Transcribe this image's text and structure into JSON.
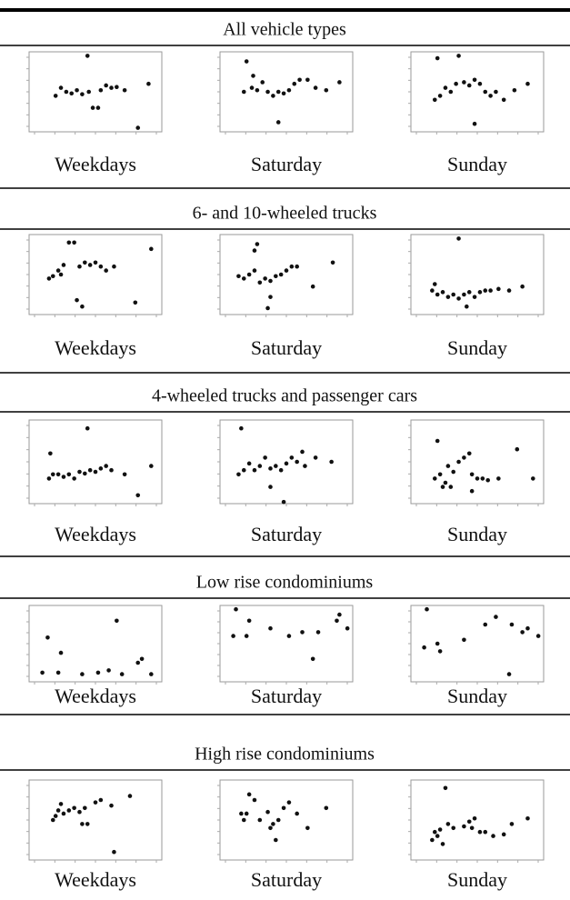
{
  "sections": [
    {
      "title": "All vehicle types",
      "charts": [
        {
          "type": "scatter",
          "label": "Weekdays",
          "xlim": [
            0,
            100
          ],
          "ylim": [
            0,
            100
          ],
          "x": [
            20,
            24,
            28,
            32,
            36,
            40,
            45,
            48,
            52,
            54,
            58,
            62,
            66,
            72,
            44,
            90,
            82
          ],
          "values": [
            45,
            55,
            50,
            48,
            52,
            47,
            50,
            30,
            30,
            52,
            58,
            55,
            56,
            52,
            95,
            60,
            5
          ]
        },
        {
          "type": "scatter",
          "label": "Saturday",
          "xlim": [
            0,
            100
          ],
          "ylim": [
            0,
            100
          ],
          "x": [
            18,
            20,
            24,
            28,
            32,
            36,
            40,
            44,
            48,
            52,
            56,
            60,
            66,
            72,
            80,
            90,
            44,
            25
          ],
          "values": [
            50,
            88,
            55,
            52,
            62,
            50,
            45,
            50,
            48,
            52,
            60,
            65,
            65,
            55,
            52,
            62,
            12,
            70
          ]
        },
        {
          "type": "scatter",
          "label": "Sunday",
          "xlim": [
            0,
            100
          ],
          "ylim": [
            0,
            100
          ],
          "x": [
            18,
            22,
            26,
            30,
            34,
            40,
            44,
            48,
            52,
            56,
            60,
            64,
            70,
            78,
            88,
            20,
            36,
            48
          ],
          "values": [
            40,
            45,
            55,
            50,
            60,
            62,
            58,
            65,
            60,
            50,
            45,
            50,
            40,
            52,
            60,
            92,
            95,
            10
          ]
        }
      ]
    },
    {
      "title": "6- and 10-wheeled trucks",
      "charts": [
        {
          "type": "scatter",
          "label": "Weekdays",
          "xlim": [
            0,
            100
          ],
          "ylim": [
            0,
            100
          ],
          "x": [
            15,
            18,
            22,
            26,
            30,
            34,
            38,
            42,
            46,
            50,
            54,
            58,
            64,
            40,
            36,
            80,
            92,
            24
          ],
          "values": [
            45,
            48,
            55,
            62,
            90,
            90,
            60,
            65,
            62,
            65,
            60,
            55,
            60,
            10,
            18,
            15,
            82,
            50
          ]
        },
        {
          "type": "scatter",
          "label": "Saturday",
          "xlim": [
            0,
            100
          ],
          "ylim": [
            0,
            100
          ],
          "x": [
            14,
            18,
            22,
            26,
            30,
            34,
            38,
            42,
            46,
            50,
            54,
            58,
            70,
            85,
            26,
            28,
            38,
            36
          ],
          "values": [
            48,
            45,
            50,
            55,
            40,
            45,
            42,
            48,
            50,
            55,
            60,
            60,
            35,
            65,
            80,
            88,
            22,
            8
          ]
        },
        {
          "type": "scatter",
          "label": "Sunday",
          "xlim": [
            0,
            100
          ],
          "ylim": [
            0,
            100
          ],
          "x": [
            16,
            20,
            24,
            28,
            32,
            36,
            40,
            44,
            48,
            52,
            56,
            60,
            66,
            74,
            84,
            36,
            42,
            18
          ],
          "values": [
            30,
            25,
            28,
            22,
            25,
            20,
            25,
            28,
            22,
            28,
            30,
            30,
            32,
            30,
            35,
            95,
            10,
            38
          ]
        }
      ]
    },
    {
      "title": "4-wheeled trucks and passenger cars",
      "charts": [
        {
          "type": "scatter",
          "label": "Weekdays",
          "xlim": [
            0,
            100
          ],
          "ylim": [
            0,
            100
          ],
          "x": [
            15,
            18,
            22,
            26,
            30,
            34,
            38,
            42,
            46,
            50,
            54,
            58,
            62,
            72,
            82,
            92,
            16,
            44
          ],
          "values": [
            30,
            35,
            35,
            32,
            35,
            30,
            38,
            36,
            40,
            38,
            42,
            45,
            40,
            35,
            10,
            45,
            60,
            90
          ]
        },
        {
          "type": "scatter",
          "label": "Saturday",
          "xlim": [
            0,
            100
          ],
          "ylim": [
            0,
            100
          ],
          "x": [
            14,
            18,
            22,
            26,
            30,
            34,
            38,
            42,
            46,
            50,
            54,
            58,
            64,
            72,
            84,
            16,
            38,
            48,
            62
          ],
          "values": [
            35,
            40,
            48,
            40,
            45,
            55,
            42,
            45,
            40,
            48,
            55,
            50,
            45,
            55,
            50,
            90,
            20,
            2,
            62
          ]
        },
        {
          "type": "scatter",
          "label": "Sunday",
          "xlim": [
            0,
            100
          ],
          "ylim": [
            0,
            100
          ],
          "x": [
            18,
            22,
            26,
            28,
            32,
            36,
            40,
            44,
            46,
            50,
            54,
            58,
            66,
            80,
            92,
            20,
            30,
            46,
            24
          ],
          "values": [
            30,
            35,
            25,
            45,
            38,
            50,
            55,
            60,
            35,
            30,
            30,
            28,
            30,
            65,
            30,
            75,
            20,
            15,
            20
          ]
        }
      ]
    },
    {
      "title": "Low rise condominiums",
      "charts": [
        {
          "type": "scatter",
          "label": "Weekdays",
          "xlim": [
            0,
            100
          ],
          "ylim": [
            0,
            100
          ],
          "x": [
            10,
            14,
            22,
            24,
            40,
            52,
            60,
            66,
            70,
            82,
            85,
            92
          ],
          "values": [
            12,
            58,
            12,
            38,
            10,
            12,
            15,
            80,
            10,
            25,
            30,
            10
          ]
        },
        {
          "type": "scatter",
          "label": "Saturday",
          "xlim": [
            0,
            100
          ],
          "ylim": [
            0,
            100
          ],
          "x": [
            10,
            12,
            20,
            22,
            38,
            52,
            62,
            70,
            74,
            88,
            90,
            96
          ],
          "values": [
            60,
            95,
            60,
            80,
            70,
            60,
            65,
            30,
            65,
            80,
            88,
            70
          ]
        },
        {
          "type": "scatter",
          "label": "Sunday",
          "xlim": [
            0,
            100
          ],
          "ylim": [
            0,
            100
          ],
          "x": [
            10,
            12,
            20,
            22,
            40,
            56,
            64,
            74,
            76,
            84,
            88,
            96
          ],
          "values": [
            45,
            95,
            50,
            40,
            55,
            75,
            85,
            10,
            75,
            65,
            70,
            60
          ]
        }
      ]
    },
    {
      "title": "High rise condominiums",
      "charts": [
        {
          "type": "scatter",
          "label": "Weekdays",
          "xlim": [
            0,
            100
          ],
          "ylim": [
            0,
            100
          ],
          "x": [
            18,
            20,
            22,
            24,
            26,
            30,
            34,
            38,
            42,
            40,
            44,
            50,
            54,
            62,
            76,
            64
          ],
          "values": [
            50,
            55,
            62,
            70,
            58,
            62,
            65,
            60,
            65,
            45,
            45,
            72,
            75,
            68,
            80,
            10
          ]
        },
        {
          "type": "scatter",
          "label": "Saturday",
          "xlim": [
            0,
            100
          ],
          "ylim": [
            0,
            100
          ],
          "x": [
            16,
            18,
            20,
            22,
            26,
            30,
            36,
            38,
            40,
            42,
            44,
            48,
            52,
            58,
            66,
            80
          ],
          "values": [
            58,
            50,
            58,
            82,
            75,
            50,
            60,
            40,
            45,
            25,
            50,
            65,
            72,
            58,
            40,
            65
          ]
        },
        {
          "type": "scatter",
          "label": "Sunday",
          "xlim": [
            0,
            100
          ],
          "ylim": [
            0,
            100
          ],
          "x": [
            16,
            18,
            20,
            22,
            24,
            28,
            32,
            40,
            44,
            46,
            48,
            52,
            56,
            62,
            70,
            76,
            88,
            26
          ],
          "values": [
            25,
            35,
            30,
            38,
            20,
            45,
            40,
            42,
            48,
            40,
            52,
            35,
            35,
            30,
            32,
            45,
            52,
            90
          ]
        }
      ]
    }
  ]
}
